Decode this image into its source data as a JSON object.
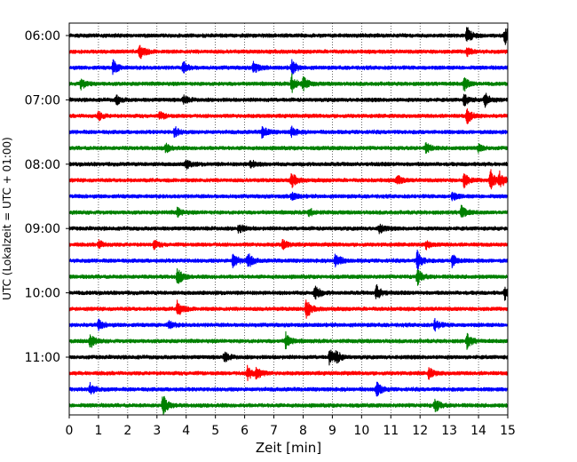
{
  "chart_data": {
    "type": "line",
    "title": "",
    "xlabel": "Zeit  [min]",
    "ylabel": "UTC (Lokalzeit = UTC + 01:00)",
    "xlim": [
      0,
      15
    ],
    "x_ticks": [
      0,
      1,
      2,
      3,
      4,
      5,
      6,
      7,
      8,
      9,
      10,
      11,
      12,
      13,
      14,
      15
    ],
    "y_tick_labels": [
      "06:00",
      "07:00",
      "08:00",
      "09:00",
      "10:00",
      "11:00"
    ],
    "y_tick_rows": [
      0,
      4,
      8,
      12,
      16,
      20
    ],
    "grid": "vertical dotted lines at each minute",
    "trace_colors": [
      "#000000",
      "#ff0000",
      "#0000ff",
      "#008000"
    ],
    "rows": [
      {
        "start": "06:00",
        "color": "#000000",
        "events": [
          [
            13.6,
            1.0
          ],
          [
            14.9,
            1.1
          ]
        ]
      },
      {
        "start": "06:15",
        "color": "#ff0000",
        "events": [
          [
            2.4,
            1.2
          ],
          [
            13.6,
            0.5
          ]
        ]
      },
      {
        "start": "06:30",
        "color": "#0000ff",
        "events": [
          [
            1.5,
            0.9
          ],
          [
            3.9,
            0.7
          ],
          [
            6.3,
            0.8
          ],
          [
            7.6,
            0.9
          ]
        ]
      },
      {
        "start": "06:45",
        "color": "#008000",
        "events": [
          [
            0.4,
            0.7
          ],
          [
            7.6,
            1.2
          ],
          [
            8.0,
            0.8
          ],
          [
            13.5,
            0.9
          ]
        ]
      },
      {
        "start": "07:00",
        "color": "#000000",
        "events": [
          [
            1.6,
            0.6
          ],
          [
            3.9,
            0.5
          ],
          [
            13.5,
            0.7
          ],
          [
            14.2,
            1.0
          ]
        ]
      },
      {
        "start": "07:15",
        "color": "#ff0000",
        "events": [
          [
            1.0,
            0.5
          ],
          [
            3.1,
            0.5
          ],
          [
            13.6,
            1.0
          ]
        ]
      },
      {
        "start": "07:30",
        "color": "#0000ff",
        "events": [
          [
            3.6,
            0.6
          ],
          [
            6.6,
            0.8
          ],
          [
            7.6,
            0.6
          ]
        ]
      },
      {
        "start": "07:45",
        "color": "#008000",
        "events": [
          [
            3.3,
            0.5
          ],
          [
            12.2,
            0.6
          ],
          [
            14.0,
            0.5
          ]
        ]
      },
      {
        "start": "08:00",
        "color": "#000000",
        "events": [
          [
            4.0,
            0.6
          ],
          [
            6.2,
            0.5
          ]
        ]
      },
      {
        "start": "08:15",
        "color": "#ff0000",
        "events": [
          [
            7.6,
            1.0
          ],
          [
            11.2,
            0.7
          ],
          [
            13.5,
            0.9
          ],
          [
            14.4,
            1.3
          ],
          [
            14.7,
            1.1
          ]
        ]
      },
      {
        "start": "08:30",
        "color": "#0000ff",
        "events": [
          [
            7.6,
            0.5
          ],
          [
            13.1,
            0.5
          ]
        ]
      },
      {
        "start": "08:45",
        "color": "#008000",
        "events": [
          [
            3.7,
            0.5
          ],
          [
            8.2,
            0.5
          ],
          [
            13.4,
            0.9
          ]
        ]
      },
      {
        "start": "09:00",
        "color": "#000000",
        "events": [
          [
            5.8,
            0.6
          ],
          [
            10.6,
            0.6
          ]
        ]
      },
      {
        "start": "09:15",
        "color": "#ff0000",
        "events": [
          [
            1.0,
            0.5
          ],
          [
            2.9,
            0.5
          ],
          [
            7.3,
            0.6
          ],
          [
            12.2,
            0.5
          ]
        ]
      },
      {
        "start": "09:30",
        "color": "#0000ff",
        "events": [
          [
            5.6,
            1.0
          ],
          [
            6.1,
            1.0
          ],
          [
            9.1,
            1.0
          ],
          [
            11.9,
            1.2
          ],
          [
            13.1,
            0.8
          ]
        ]
      },
      {
        "start": "09:45",
        "color": "#008000",
        "events": [
          [
            3.7,
            1.0
          ],
          [
            11.9,
            1.0
          ]
        ]
      },
      {
        "start": "10:00",
        "color": "#000000",
        "events": [
          [
            8.4,
            1.0
          ],
          [
            10.5,
            1.0
          ],
          [
            14.9,
            0.8
          ]
        ]
      },
      {
        "start": "10:15",
        "color": "#ff0000",
        "events": [
          [
            3.7,
            1.2
          ],
          [
            8.1,
            1.2
          ]
        ]
      },
      {
        "start": "10:30",
        "color": "#0000ff",
        "events": [
          [
            1.0,
            0.6
          ],
          [
            3.4,
            0.5
          ],
          [
            12.5,
            0.7
          ]
        ]
      },
      {
        "start": "10:45",
        "color": "#008000",
        "events": [
          [
            0.7,
            0.9
          ],
          [
            7.4,
            1.0
          ],
          [
            13.6,
            0.9
          ]
        ]
      },
      {
        "start": "11:00",
        "color": "#000000",
        "events": [
          [
            5.3,
            0.6
          ],
          [
            8.9,
            0.9
          ],
          [
            9.1,
            0.8
          ]
        ]
      },
      {
        "start": "11:15",
        "color": "#ff0000",
        "events": [
          [
            6.1,
            0.9
          ],
          [
            6.4,
            0.8
          ],
          [
            12.3,
            0.7
          ]
        ]
      },
      {
        "start": "11:30",
        "color": "#0000ff",
        "events": [
          [
            0.7,
            0.8
          ],
          [
            10.5,
            1.0
          ]
        ]
      },
      {
        "start": "11:45",
        "color": "#008000",
        "events": [
          [
            3.2,
            1.3
          ],
          [
            12.5,
            0.9
          ]
        ]
      }
    ]
  }
}
